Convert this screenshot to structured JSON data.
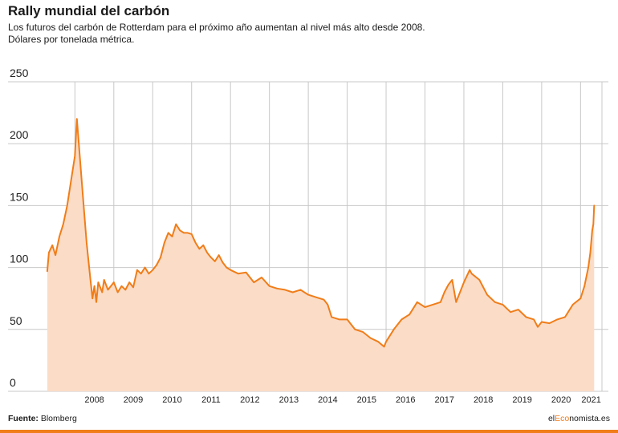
{
  "header": {
    "title": "Rally mundial del carbón",
    "subtitle_line1": "Los futuros del carbón de Rotterdam para el próximo año aumentan al nivel más alto desde 2008.",
    "subtitle_line2": "Dólares por tonelada métrica."
  },
  "footer": {
    "source_label": "Fuente:",
    "source_value": "Blomberg",
    "brand_prefix": "el",
    "brand_accent": "Eco",
    "brand_suffix": "nomista.es"
  },
  "colors": {
    "line": "#f07d19",
    "fill": "#fbdcc6",
    "grid": "#c8c8c8",
    "accent_bar": "#f07d19"
  },
  "chart_data": {
    "type": "area",
    "title": "Rally mundial del carbón",
    "ylabel": "Dólares por tonelada métrica",
    "xlim": [
      2007.25,
      2021.55
    ],
    "ylim": [
      0,
      250
    ],
    "yticks": [
      0,
      50,
      100,
      150,
      200,
      250
    ],
    "xtick_labels": [
      "2008",
      "2009",
      "2010",
      "2011",
      "2012",
      "2013",
      "2014",
      "2015",
      "2016",
      "2017",
      "2018",
      "2019",
      "2020",
      "2021"
    ],
    "grid": true,
    "series": [
      {
        "x": [
          2007.29,
          2007.33,
          2007.42,
          2007.5,
          2007.6,
          2007.7,
          2007.8,
          2007.9,
          2008.0,
          2008.05,
          2008.1,
          2008.2,
          2008.3,
          2008.4,
          2008.45,
          2008.5,
          2008.55,
          2008.6,
          2008.7,
          2008.75,
          2008.85,
          2008.95,
          2009.0,
          2009.1,
          2009.2,
          2009.3,
          2009.4,
          2009.5,
          2009.6,
          2009.7,
          2009.8,
          2009.9,
          2010.0,
          2010.1,
          2010.2,
          2010.3,
          2010.4,
          2010.5,
          2010.6,
          2010.7,
          2010.8,
          2010.9,
          2011.0,
          2011.1,
          2011.2,
          2011.3,
          2011.4,
          2011.5,
          2011.6,
          2011.7,
          2011.8,
          2011.9,
          2012.0,
          2012.2,
          2012.4,
          2012.6,
          2012.8,
          2013.0,
          2013.2,
          2013.4,
          2013.6,
          2013.8,
          2014.0,
          2014.2,
          2014.4,
          2014.5,
          2014.6,
          2014.8,
          2015.0,
          2015.2,
          2015.4,
          2015.6,
          2015.8,
          2015.95,
          2016.0,
          2016.2,
          2016.4,
          2016.6,
          2016.8,
          2017.0,
          2017.2,
          2017.4,
          2017.5,
          2017.6,
          2017.7,
          2017.8,
          2018.0,
          2018.15,
          2018.2,
          2018.4,
          2018.6,
          2018.8,
          2019.0,
          2019.2,
          2019.4,
          2019.6,
          2019.8,
          2019.9,
          2020.0,
          2020.2,
          2020.4,
          2020.6,
          2020.8,
          2021.0,
          2021.1,
          2021.2,
          2021.25,
          2021.3,
          2021.33,
          2021.35
        ],
        "values": [
          97,
          112,
          118,
          110,
          125,
          135,
          150,
          170,
          190,
          220,
          200,
          160,
          120,
          90,
          75,
          85,
          72,
          88,
          80,
          90,
          82,
          86,
          88,
          80,
          85,
          82,
          88,
          84,
          98,
          95,
          100,
          95,
          98,
          102,
          108,
          120,
          128,
          125,
          135,
          130,
          128,
          128,
          127,
          120,
          115,
          118,
          112,
          108,
          105,
          110,
          104,
          100,
          98,
          95,
          96,
          88,
          92,
          85,
          83,
          82,
          80,
          82,
          78,
          76,
          74,
          70,
          60,
          58,
          58,
          50,
          48,
          43,
          40,
          36,
          40,
          50,
          58,
          62,
          72,
          68,
          70,
          72,
          80,
          86,
          90,
          72,
          88,
          98,
          95,
          90,
          78,
          72,
          70,
          64,
          66,
          60,
          58,
          52,
          56,
          55,
          58,
          60,
          70,
          75,
          85,
          100,
          112,
          130,
          135,
          150
        ]
      }
    ]
  }
}
